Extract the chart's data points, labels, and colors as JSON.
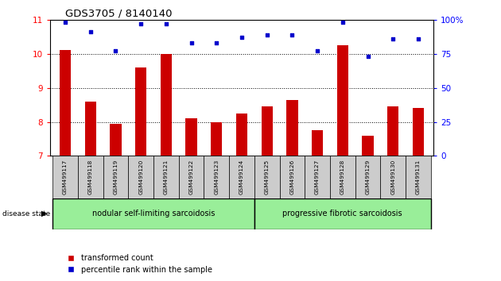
{
  "title": "GDS3705 / 8140140",
  "categories": [
    "GSM499117",
    "GSM499118",
    "GSM499119",
    "GSM499120",
    "GSM499121",
    "GSM499122",
    "GSM499123",
    "GSM499124",
    "GSM499125",
    "GSM499126",
    "GSM499127",
    "GSM499128",
    "GSM499129",
    "GSM499130",
    "GSM499131"
  ],
  "bar_values": [
    10.1,
    8.6,
    7.95,
    9.6,
    10.0,
    8.1,
    8.0,
    8.25,
    8.45,
    8.65,
    7.75,
    10.25,
    7.6,
    8.45,
    8.4
  ],
  "dot_values": [
    98,
    91,
    77,
    97,
    97,
    83,
    83,
    87,
    89,
    89,
    77,
    98,
    73,
    86,
    86
  ],
  "bar_color": "#cc0000",
  "dot_color": "#0000cc",
  "ylim_left": [
    7,
    11
  ],
  "ylim_right": [
    0,
    100
  ],
  "yticks_left": [
    7,
    8,
    9,
    10,
    11
  ],
  "yticks_right": [
    0,
    25,
    50,
    75,
    100
  ],
  "grid_ticks": [
    8,
    9,
    10
  ],
  "group1_label": "nodular self-limiting sarcoidosis",
  "group2_label": "progressive fibrotic sarcoidosis",
  "group1_count": 8,
  "group2_count": 7,
  "disease_state_label": "disease state",
  "legend_bar_label": "transformed count",
  "legend_dot_label": "percentile rank within the sample",
  "group_bg_color": "#99ee99",
  "tick_bg_color": "#cccccc",
  "plot_bg_color": "#ffffff"
}
